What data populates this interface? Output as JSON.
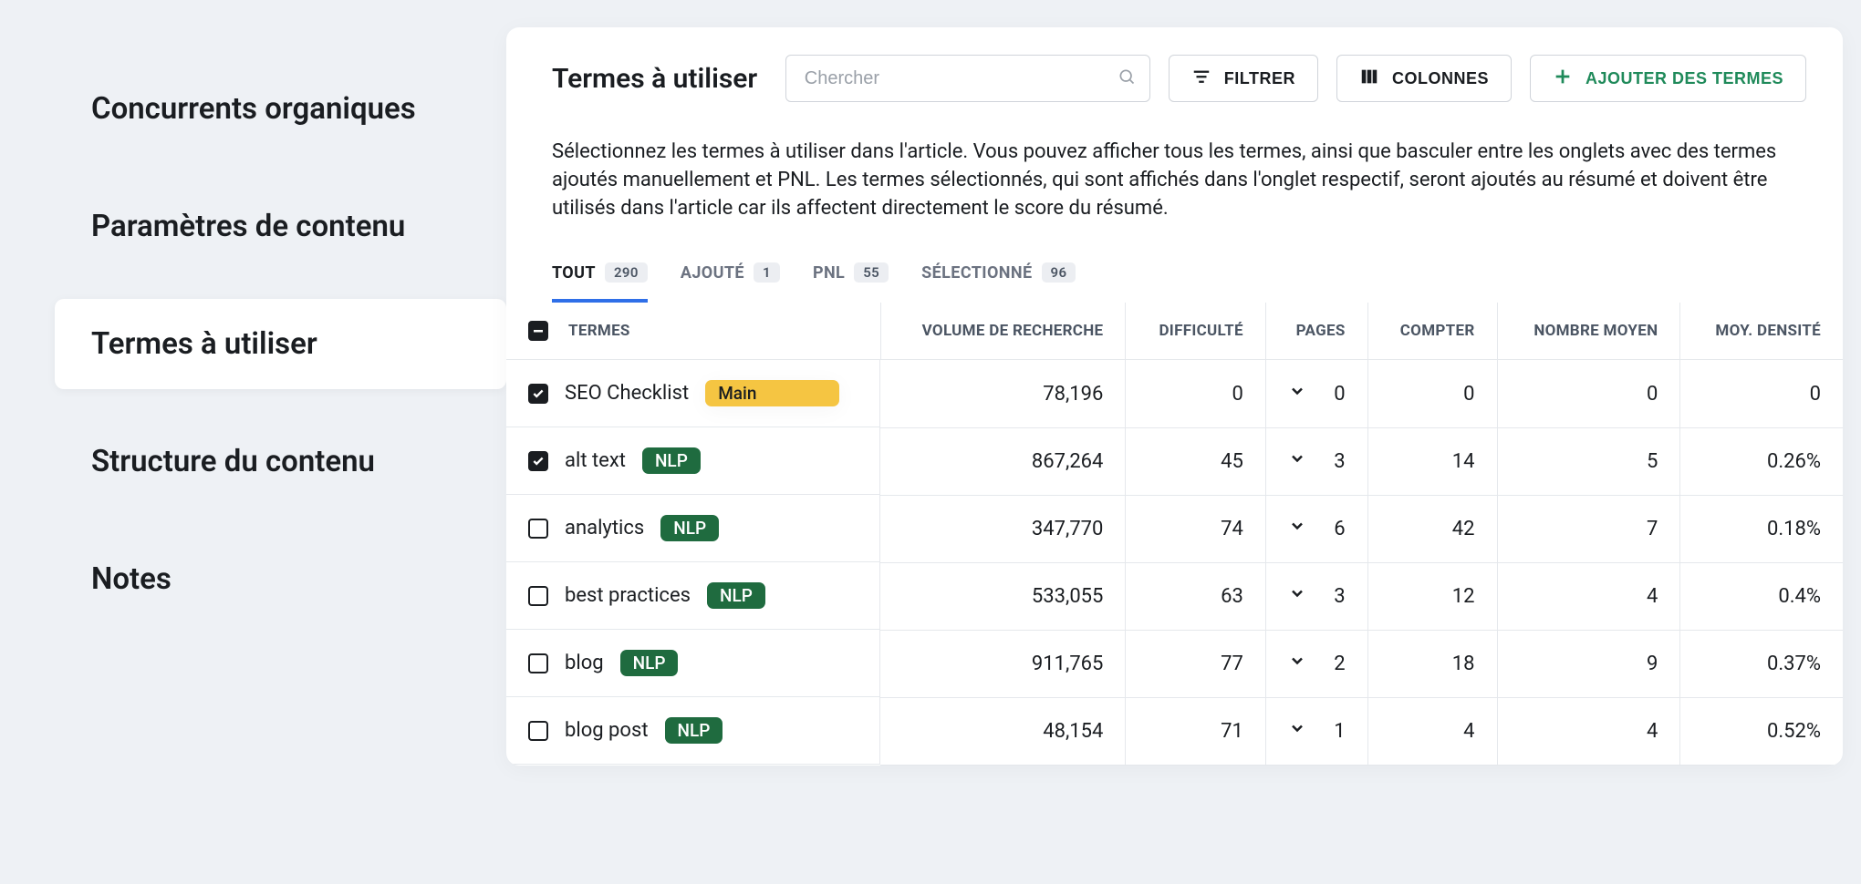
{
  "sidebar": {
    "items": [
      {
        "label": "Concurrents organiques",
        "active": false
      },
      {
        "label": "Paramètres de contenu",
        "active": false
      },
      {
        "label": "Termes à utiliser",
        "active": true
      },
      {
        "label": "Structure du contenu",
        "active": false
      },
      {
        "label": "Notes",
        "active": false
      }
    ]
  },
  "header": {
    "title": "Termes à utiliser",
    "search_placeholder": "Chercher",
    "filter_label": "FILTRER",
    "columns_label": "COLONNES",
    "add_terms_label": "AJOUTER DES TERMES"
  },
  "description": "Sélectionnez les termes à utiliser dans l'article. Vous pouvez afficher tous les termes, ainsi que basculer entre les onglets avec des termes ajoutés manuellement et PNL. Les termes sélectionnés, qui sont affichés dans l'onglet respectif, seront ajoutés au résumé et doivent être utilisés dans l'article car ils affectent directement le score du résumé.",
  "tabs": [
    {
      "label": "TOUT",
      "count": "290",
      "active": true
    },
    {
      "label": "AJOUTÉ",
      "count": "1",
      "active": false
    },
    {
      "label": "PNL",
      "count": "55",
      "active": false
    },
    {
      "label": "SÉLECTIONNÉ",
      "count": "96",
      "active": false
    }
  ],
  "table": {
    "columns": {
      "terms": "TERMES",
      "volume": "VOLUME DE RECHERCHE",
      "difficulty": "DIFFICULTÉ",
      "pages": "PAGES",
      "count": "COMPTER",
      "avg_number": "NOMBRE MOYEN",
      "avg_density": "MOY. DENSITÉ"
    },
    "header_checkbox_state": "indeterminate",
    "rows": [
      {
        "checked": true,
        "term": "SEO Checklist",
        "tag": "Main",
        "tag_type": "main",
        "volume": "78,196",
        "difficulty": "0",
        "pages": "0",
        "count": "0",
        "avg_number": "0",
        "avg_density": "0"
      },
      {
        "checked": true,
        "term": "alt text",
        "tag": "NLP",
        "tag_type": "nlp",
        "volume": "867,264",
        "difficulty": "45",
        "pages": "3",
        "count": "14",
        "avg_number": "5",
        "avg_density": "0.26%"
      },
      {
        "checked": false,
        "term": "analytics",
        "tag": "NLP",
        "tag_type": "nlp",
        "volume": "347,770",
        "difficulty": "74",
        "pages": "6",
        "count": "42",
        "avg_number": "7",
        "avg_density": "0.18%"
      },
      {
        "checked": false,
        "term": "best practices",
        "tag": "NLP",
        "tag_type": "nlp",
        "volume": "533,055",
        "difficulty": "63",
        "pages": "3",
        "count": "12",
        "avg_number": "4",
        "avg_density": "0.4%"
      },
      {
        "checked": false,
        "term": "blog",
        "tag": "NLP",
        "tag_type": "nlp",
        "volume": "911,765",
        "difficulty": "77",
        "pages": "2",
        "count": "18",
        "avg_number": "9",
        "avg_density": "0.37%"
      },
      {
        "checked": false,
        "term": "blog post",
        "tag": "NLP",
        "tag_type": "nlp",
        "volume": "48,154",
        "difficulty": "71",
        "pages": "1",
        "count": "4",
        "avg_number": "4",
        "avg_density": "0.52%"
      }
    ]
  },
  "colors": {
    "background": "#eef1f5",
    "panel": "#ffffff",
    "text": "#1a1d21",
    "muted": "#6b7280",
    "border": "#e5e8ec",
    "accent_blue": "#2f6fe8",
    "accent_green": "#1f8a5a",
    "tag_main_bg": "#f5c542",
    "tag_nlp_bg": "#1f6b3f"
  }
}
